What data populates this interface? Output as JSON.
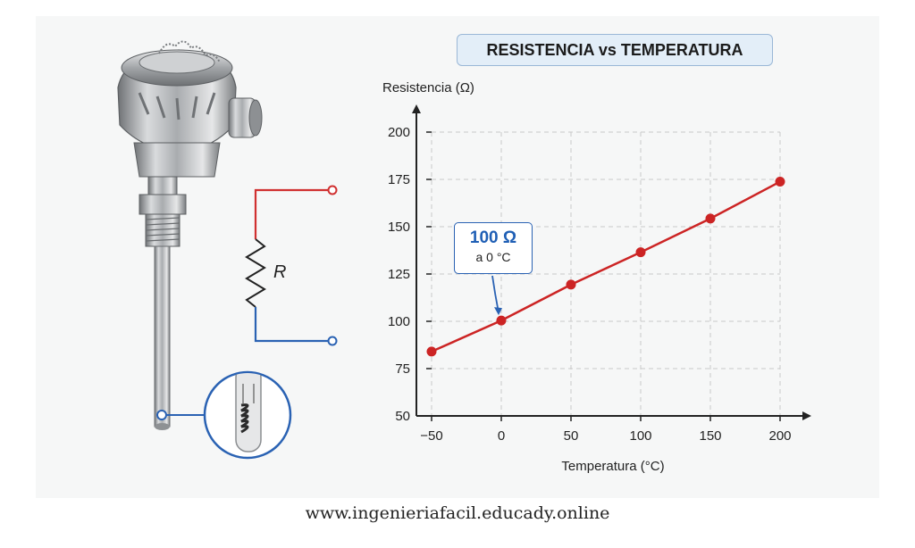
{
  "chart_data": {
    "type": "line",
    "title": "RESISTENCIA vs TEMPERATURA",
    "xlabel": "Temperatura (°C)",
    "ylabel": "Resistencia (Ω)",
    "x": [
      -50,
      0,
      50,
      100,
      150,
      200
    ],
    "series": [
      {
        "values": [
          84,
          100.4,
          119.4,
          136.5,
          154.3,
          173.8
        ]
      }
    ],
    "xlim": [
      -50,
      200
    ],
    "ylim": [
      50,
      200
    ],
    "xticks": [
      "−50",
      "0",
      "50",
      "100",
      "150",
      "200"
    ],
    "yticks": [
      "50",
      "75",
      "100",
      "125",
      "150",
      "175",
      "200"
    ],
    "grid": true,
    "line_color": "#cc2424",
    "annotation": {
      "value": "100 Ω",
      "note": "a 0 °C",
      "at_x": 0
    }
  },
  "sensor": {
    "resistor_label": "R"
  },
  "colors": {
    "positive_wire": "#d03030",
    "negative_wire": "#2a62b3",
    "accent": "#1f5fb5"
  },
  "footer": {
    "url": "www.ingenieriafacil.educady.online"
  }
}
